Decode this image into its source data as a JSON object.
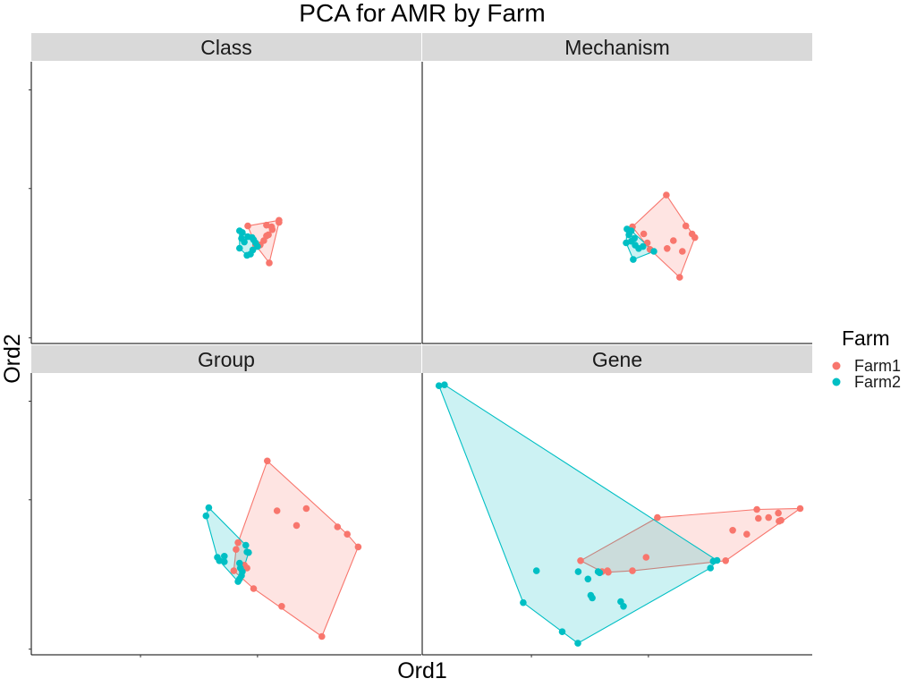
{
  "chart_data": {
    "type": "scatter",
    "title": "PCA for AMR by Farm",
    "xlabel": "Ord1",
    "ylabel": "Ord2",
    "x_tick_labels_shown": false,
    "y_tick_labels_shown": false,
    "legend": {
      "title": "Farm",
      "placement": "right",
      "entries": [
        {
          "name": "Farm1",
          "color": "#F8766D"
        },
        {
          "name": "Farm2",
          "color": "#00BFC4"
        }
      ]
    },
    "hull_polygons": true,
    "grid": false,
    "facets": [
      {
        "name": "Class",
        "xlim": [
          0,
          100
        ],
        "ylim": [
          0,
          100
        ],
        "series": [
          {
            "name": "Farm1",
            "points": [
              [
                55.5,
                41.7
              ],
              [
                60.3,
                42.0
              ],
              [
                63.5,
                43.7
              ],
              [
                63.5,
                43.0
              ],
              [
                61.6,
                41.4
              ],
              [
                61.8,
                40.4
              ],
              [
                60.8,
                38.6
              ],
              [
                60.3,
                38.2
              ],
              [
                59.6,
                36.5
              ],
              [
                61.0,
                28.6
              ],
              [
                57.5,
                35.0
              ],
              [
                58.7,
                35.0
              ]
            ]
          },
          {
            "name": "Farm2",
            "points": [
              [
                53.4,
                40.0
              ],
              [
                54.1,
                39.4
              ],
              [
                53.9,
                37.3
              ],
              [
                54.6,
                36.0
              ],
              [
                55.5,
                37.9
              ],
              [
                56.6,
                37.6
              ],
              [
                57.0,
                36.8
              ],
              [
                57.5,
                35.7
              ],
              [
                56.8,
                33.2
              ],
              [
                56.2,
                31.7
              ],
              [
                55.3,
                31.3
              ],
              [
                53.4,
                33.8
              ],
              [
                58.0,
                34.4
              ]
            ]
          }
        ]
      },
      {
        "name": "Mechanism",
        "xlim": [
          0,
          100
        ],
        "ylim": [
          0,
          100
        ],
        "series": [
          {
            "name": "Farm1",
            "points": [
              [
                62.6,
                52.7
              ],
              [
                67.6,
                41.7
              ],
              [
                69.2,
                38.9
              ],
              [
                69.9,
                37.6
              ],
              [
                64.4,
                36.5
              ],
              [
                62.8,
                33.7
              ],
              [
                66.7,
                32.7
              ],
              [
                66.0,
                23.5
              ],
              [
                53.9,
                41.4
              ],
              [
                56.8,
                38.9
              ],
              [
                57.7,
                35.7
              ],
              [
                58.4,
                33.4
              ]
            ]
          },
          {
            "name": "Farm2",
            "points": [
              [
                52.5,
                40.6
              ],
              [
                53.6,
                40.0
              ],
              [
                53.0,
                38.6
              ],
              [
                54.4,
                37.3
              ],
              [
                53.6,
                36.3
              ],
              [
                52.3,
                35.7
              ],
              [
                54.6,
                34.9
              ],
              [
                55.5,
                33.7
              ],
              [
                56.6,
                34.4
              ],
              [
                59.4,
                32.7
              ],
              [
                54.1,
                29.8
              ]
            ]
          }
        ]
      },
      {
        "name": "Group",
        "xlim": [
          0,
          100
        ],
        "ylim": [
          0,
          100
        ],
        "series": [
          {
            "name": "Farm1",
            "points": [
              [
                60.5,
                68.8
              ],
              [
                63.0,
                51.1
              ],
              [
                70.5,
                51.9
              ],
              [
                68.0,
                45.9
              ],
              [
                78.5,
                45.4
              ],
              [
                81.0,
                42.8
              ],
              [
                83.8,
                38.3
              ],
              [
                53.0,
                39.8
              ],
              [
                52.5,
                37.4
              ],
              [
                54.6,
                31.8
              ],
              [
                55.3,
                30.8
              ],
              [
                51.9,
                29.8
              ],
              [
                57.0,
                23.5
              ],
              [
                64.2,
                17.2
              ],
              [
                74.5,
                6.5
              ]
            ]
          },
          {
            "name": "Farm2",
            "points": [
              [
                45.5,
                52.2
              ],
              [
                44.8,
                49.3
              ],
              [
                55.0,
                38.9
              ],
              [
                55.3,
                36.5
              ],
              [
                55.7,
                36.3
              ],
              [
                49.5,
                35.0
              ],
              [
                47.7,
                34.6
              ],
              [
                48.2,
                33.4
              ],
              [
                49.5,
                33.0
              ],
              [
                53.4,
                32.5
              ],
              [
                53.6,
                30.8
              ],
              [
                54.1,
                29.5
              ],
              [
                53.9,
                28.1
              ],
              [
                53.4,
                26.9
              ],
              [
                53.0,
                26.0
              ]
            ]
          }
        ]
      },
      {
        "name": "Gene",
        "xlim": [
          0,
          100
        ],
        "ylim": [
          0,
          100
        ],
        "series": [
          {
            "name": "Farm1",
            "points": [
              [
                60.3,
                48.7
              ],
              [
                85.8,
                51.6
              ],
              [
                96.9,
                51.9
              ],
              [
                91.3,
                50.3
              ],
              [
                88.8,
                48.7
              ],
              [
                86.2,
                48.4
              ],
              [
                92.0,
                47.7
              ],
              [
                91.5,
                47.4
              ],
              [
                79.6,
                44.2
              ],
              [
                83.2,
                42.8
              ],
              [
                57.4,
                34.6
              ],
              [
                77.8,
                33.4
              ],
              [
                40.6,
                33.4
              ],
              [
                47.5,
                29.8
              ],
              [
                53.9,
                29.8
              ],
              [
                46.1,
                29.5
              ],
              [
                47.7,
                29.3
              ]
            ]
          },
          {
            "name": "Farm2",
            "points": [
              [
                4.3,
                95.5
              ],
              [
                5.7,
                95.8
              ],
              [
                29.3,
                29.8
              ],
              [
                40.0,
                29.5
              ],
              [
                45.1,
                29.5
              ],
              [
                45.5,
                29.1
              ],
              [
                42.5,
                26.9
              ],
              [
                43.6,
                20.2
              ],
              [
                43.2,
                21.1
              ],
              [
                51.6,
                17.2
              ],
              [
                50.9,
                18.9
              ],
              [
                25.9,
                18.5
              ],
              [
                35.9,
                8.2
              ],
              [
                39.9,
                4.1
              ],
              [
                73.9,
                30.8
              ],
              [
                74.6,
                33.2
              ],
              [
                75.6,
                33.5
              ]
            ]
          }
        ]
      }
    ]
  }
}
